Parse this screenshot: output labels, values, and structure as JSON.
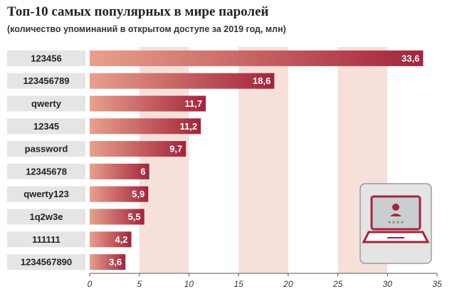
{
  "chart_data": {
    "type": "bar",
    "orientation": "horizontal",
    "title": "Топ-10 самых популярных в мире паролей",
    "subtitle": "(количество упоминаний в открытом доступе за 2019 год, млн)",
    "categories": [
      "123456",
      "123456789",
      "qwerty",
      "12345",
      "password",
      "12345678",
      "qwerty123",
      "1q2w3e",
      "111111",
      "1234567890"
    ],
    "values": [
      33.6,
      18.6,
      11.7,
      11.2,
      9.7,
      6,
      5.9,
      5.5,
      4.2,
      3.6
    ],
    "value_labels": [
      "33,6",
      "18,6",
      "11,7",
      "11,2",
      "9,7",
      "6",
      "5,9",
      "5,5",
      "4,2",
      "3,6"
    ],
    "xlim": [
      0,
      35
    ],
    "xticks": [
      "0",
      "5",
      "10",
      "15",
      "20",
      "25",
      "30",
      "35"
    ],
    "xlabel": "",
    "ylabel": "",
    "grid": "alternating vertical bands",
    "legend": "none",
    "colors": {
      "bar_dark": "#a3243b",
      "bar_light": "#e8a08c",
      "band": "#f6e1da",
      "label_box": "#e5e5e5",
      "axis": "#555555"
    },
    "icon": "laptop-user-login-icon"
  }
}
